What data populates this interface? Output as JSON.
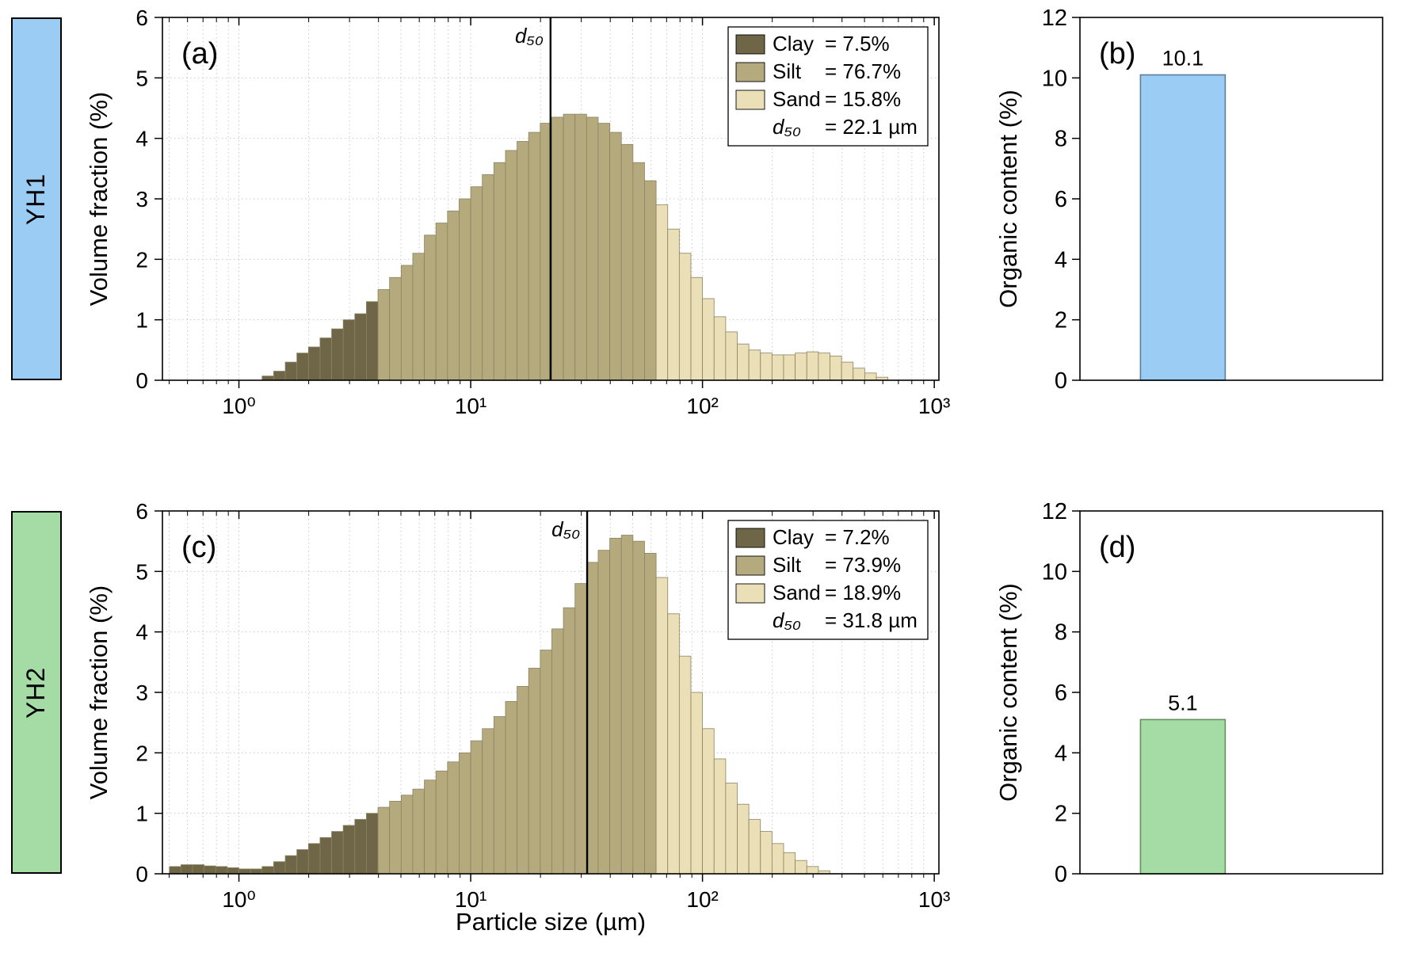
{
  "footer": {
    "xlabel": "Particle size (µm)"
  },
  "colors": {
    "clay": "#6e6646",
    "silt": "#b5aa7d",
    "sand": "#eadfb6",
    "bar_outline": "#8a8363",
    "grid": "#c9c9c9",
    "yh1_fill": "#9bcdf4",
    "yh1_stroke": "#5a7d9e",
    "yh2_fill": "#a5dba5",
    "yh2_stroke": "#66905f"
  },
  "samples": [
    {
      "name": "YH1",
      "accent": "#9bcdf4",
      "clay_pct": 7.5,
      "silt_pct": 76.7,
      "sand_pct": 15.8,
      "d50_um": 22.1,
      "organic_content_pct": 10.1
    },
    {
      "name": "YH2",
      "accent": "#a5dba5",
      "clay_pct": 7.2,
      "silt_pct": 73.9,
      "sand_pct": 18.9,
      "d50_um": 31.8,
      "organic_content_pct": 5.1
    }
  ],
  "chart_data": [
    {
      "type": "bar",
      "subtype": "particle-size-histogram",
      "panel": "(a)",
      "sample": "YH1",
      "ylabel": "Volume fraction (%)",
      "xlabel": "Particle size (µm)",
      "x_scale": "log10",
      "xlim_log10": [
        -0.33,
        3.02
      ],
      "ylim": [
        0,
        6
      ],
      "yticks": [
        0,
        1,
        2,
        3,
        4,
        5,
        6
      ],
      "xtick_exponents": [
        0,
        1,
        2,
        3
      ],
      "grid": true,
      "legend_position": "top-right",
      "bin_width_log10": 0.05,
      "bins_start_log10": 0.1,
      "values": [
        0.07,
        0.15,
        0.3,
        0.45,
        0.55,
        0.7,
        0.85,
        1.0,
        1.1,
        1.3,
        1.5,
        1.7,
        1.9,
        2.1,
        2.4,
        2.6,
        2.8,
        3.0,
        3.2,
        3.4,
        3.6,
        3.8,
        3.95,
        4.1,
        4.25,
        4.35,
        4.4,
        4.4,
        4.35,
        4.25,
        4.1,
        3.9,
        3.6,
        3.3,
        2.9,
        2.5,
        2.1,
        1.7,
        1.35,
        1.05,
        0.8,
        0.6,
        0.5,
        0.45,
        0.42,
        0.42,
        0.45,
        0.47,
        0.45,
        0.4,
        0.3,
        0.2,
        0.12,
        0.05
      ],
      "clay_max_um": 4,
      "sand_min_um": 63,
      "d50_um": 22.1,
      "d50_label": "d₅₀",
      "legend": [
        {
          "swatch": "clay",
          "label": "Clay",
          "value": "= 7.5%"
        },
        {
          "swatch": "silt",
          "label": "Silt",
          "value": "= 76.7%"
        },
        {
          "swatch": "sand",
          "label": "Sand",
          "value": "= 15.8%"
        },
        {
          "swatch": null,
          "label": "d₅₀",
          "italic": true,
          "value": "= 22.1 µm"
        }
      ]
    },
    {
      "type": "bar",
      "subtype": "single-bar",
      "panel": "(b)",
      "sample": "YH1",
      "ylabel": "Organic content (%)",
      "ylim": [
        0,
        12
      ],
      "yticks": [
        0,
        2,
        4,
        6,
        8,
        10,
        12
      ],
      "categories": [
        "YH1"
      ],
      "values": [
        10.1
      ],
      "value_labels": [
        "10.1"
      ],
      "fill_key": "yh1_fill",
      "stroke_key": "yh1_stroke"
    },
    {
      "type": "bar",
      "subtype": "particle-size-histogram",
      "panel": "(c)",
      "sample": "YH2",
      "ylabel": "Volume fraction (%)",
      "xlabel": "Particle size (µm)",
      "x_scale": "log10",
      "xlim_log10": [
        -0.33,
        3.02
      ],
      "ylim": [
        0,
        6
      ],
      "yticks": [
        0,
        1,
        2,
        3,
        4,
        5,
        6
      ],
      "xtick_exponents": [
        0,
        1,
        2,
        3
      ],
      "grid": true,
      "legend_position": "top-right",
      "bin_width_log10": 0.05,
      "bins_start_log10": -0.3,
      "values": [
        0.12,
        0.15,
        0.15,
        0.13,
        0.12,
        0.1,
        0.08,
        0.08,
        0.12,
        0.2,
        0.3,
        0.4,
        0.5,
        0.6,
        0.7,
        0.8,
        0.9,
        1.0,
        1.1,
        1.2,
        1.3,
        1.4,
        1.55,
        1.7,
        1.85,
        2.0,
        2.2,
        2.4,
        2.6,
        2.85,
        3.1,
        3.4,
        3.7,
        4.05,
        4.4,
        4.8,
        5.15,
        5.35,
        5.55,
        5.6,
        5.5,
        5.3,
        4.9,
        4.3,
        3.6,
        3.0,
        2.4,
        1.9,
        1.5,
        1.15,
        0.9,
        0.7,
        0.5,
        0.35,
        0.22,
        0.12,
        0.05
      ],
      "clay_max_um": 4,
      "sand_min_um": 63,
      "d50_um": 31.8,
      "d50_label": "d₅₀",
      "legend": [
        {
          "swatch": "clay",
          "label": "Clay",
          "value": "= 7.2%"
        },
        {
          "swatch": "silt",
          "label": "Silt",
          "value": "= 73.9%"
        },
        {
          "swatch": "sand",
          "label": "Sand",
          "value": "= 18.9%"
        },
        {
          "swatch": null,
          "label": "d₅₀",
          "italic": true,
          "value": "= 31.8 µm"
        }
      ]
    },
    {
      "type": "bar",
      "subtype": "single-bar",
      "panel": "(d)",
      "sample": "YH2",
      "ylabel": "Organic content (%)",
      "ylim": [
        0,
        12
      ],
      "yticks": [
        0,
        2,
        4,
        6,
        8,
        10,
        12
      ],
      "categories": [
        "YH2"
      ],
      "values": [
        5.1
      ],
      "value_labels": [
        "5.1"
      ],
      "fill_key": "yh2_fill",
      "stroke_key": "yh2_stroke"
    }
  ]
}
